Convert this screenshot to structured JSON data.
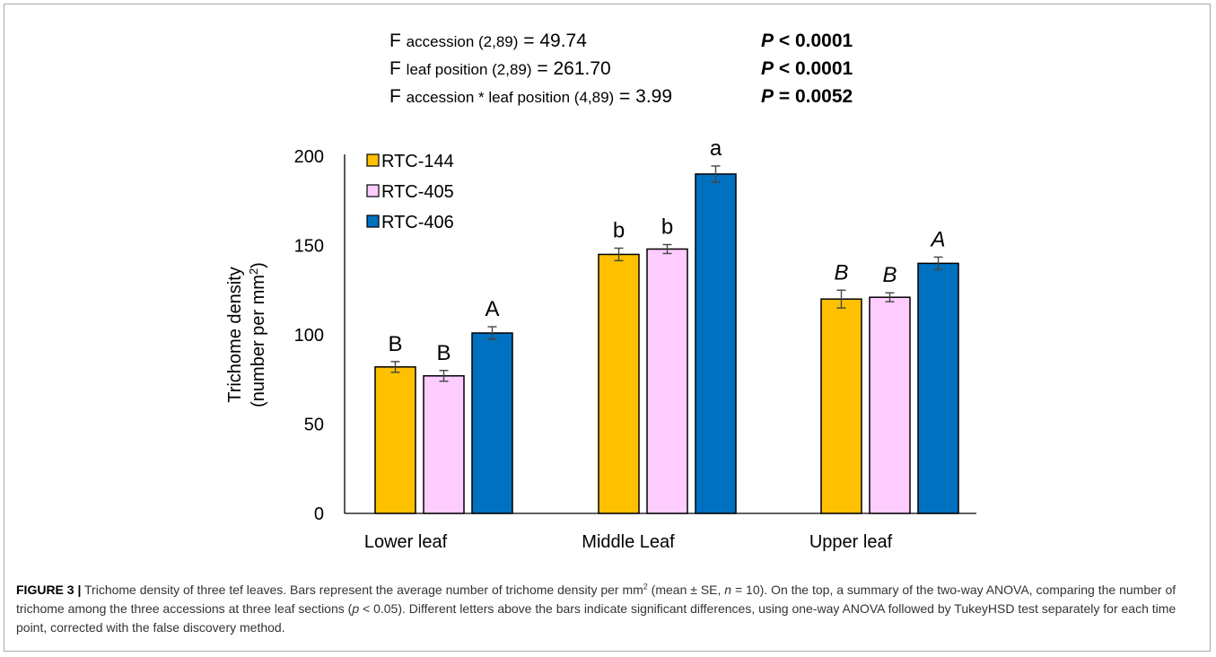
{
  "anova": [
    {
      "label_prefix": "F",
      "label_sub": "accession (2,89)",
      "value_text": "= 49.74",
      "p_var": "P",
      "p_rest": " < 0.0001"
    },
    {
      "label_prefix": "F",
      "label_sub": "leaf position (2,89)",
      "value_text": "= 261.70",
      "p_var": "P",
      "p_rest": " < 0.0001"
    },
    {
      "label_prefix": "F",
      "label_sub": "accession * leaf position (4,89)",
      "value_text": "= 3.99",
      "p_var": "P",
      "p_rest": " = 0.0052"
    }
  ],
  "chart_data": {
    "type": "bar",
    "categories": [
      "Lower leaf",
      "Middle Leaf",
      "Upper leaf"
    ],
    "ylabel_line1": "Trichome density",
    "ylabel_line2": "(number per mm",
    "ylabel_sup": "2",
    "ylabel_close": ")",
    "ylim": [
      0,
      200
    ],
    "yticks": [
      0,
      50,
      100,
      150,
      200
    ],
    "grid": false,
    "legend_position": "top-left",
    "series": [
      {
        "name": "RTC-144",
        "color": "#FFC000",
        "values": [
          82,
          145,
          120
        ],
        "errors": [
          3,
          3.5,
          5
        ],
        "letters": [
          "B",
          "b",
          "B"
        ],
        "italic": [
          false,
          false,
          true
        ]
      },
      {
        "name": "RTC-405",
        "color": "#FFCCFF",
        "values": [
          77,
          148,
          121
        ],
        "errors": [
          3,
          2.5,
          2.5
        ],
        "letters": [
          "B",
          "b",
          "B"
        ],
        "italic": [
          false,
          false,
          true
        ]
      },
      {
        "name": "RTC-406",
        "color": "#0070C0",
        "values": [
          101,
          190,
          140
        ],
        "errors": [
          3.5,
          4.5,
          3.5
        ],
        "letters": [
          "A",
          "a",
          "A"
        ],
        "italic": [
          false,
          false,
          true
        ]
      }
    ]
  },
  "caption": {
    "label": "FIGURE 3 |",
    "part1": " Trichome density of three tef leaves. Bars represent the average number of trichome density per mm",
    "sup": "2",
    "part2": " (mean ± SE, ",
    "n_var": "n",
    "part3": " = 10). On the top, a summary of the two-way ANOVA, comparing the number of trichome among the three accessions at three leaf sections (",
    "p_var": "p",
    "part4": " < 0.05). Different letters above the bars indicate significant differences, using one-way ANOVA followed by TukeyHSD test separately for each time point, corrected with the false discovery method."
  }
}
